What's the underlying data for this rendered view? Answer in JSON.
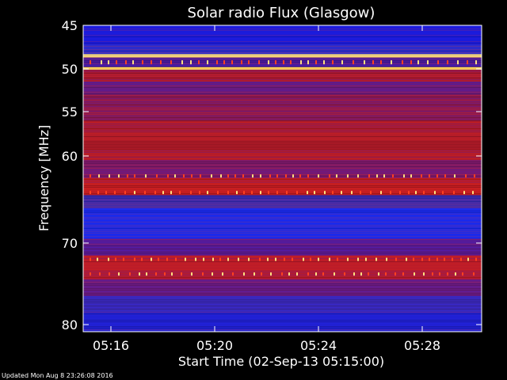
{
  "chart_data": {
    "type": "heatmap",
    "title": "Solar radio Flux (Glasgow)",
    "xlabel": "Start Time (02-Sep-13 05:15:00)",
    "ylabel": "Frequency [MHz]",
    "footer": "Updated Mon Aug  8 23:26:08 2016",
    "x_range_minutes": [
      0,
      15
    ],
    "x_ticks": [
      {
        "label": "05:16",
        "minute": 1
      },
      {
        "label": "05:20",
        "minute": 5
      },
      {
        "label": "05:24",
        "minute": 9
      },
      {
        "label": "05:28",
        "minute": 13
      }
    ],
    "y_range_mhz": [
      45,
      80
    ],
    "y_ticks": [
      {
        "label": "45",
        "mhz": 45
      },
      {
        "label": "50",
        "mhz": 50
      },
      {
        "label": "55",
        "mhz": 55
      },
      {
        "label": "60",
        "mhz": 60
      },
      {
        "label": "70",
        "mhz": 70
      },
      {
        "label": "80",
        "mhz": 80
      }
    ],
    "bands": [
      {
        "from": 45.0,
        "to": 47.2,
        "color": "#1a1ad8"
      },
      {
        "from": 47.2,
        "to": 48.3,
        "color": "#2c2cc8"
      },
      {
        "from": 48.3,
        "to": 48.7,
        "color": "#ffe070"
      },
      {
        "from": 48.7,
        "to": 49.8,
        "color": "#4a1a9a"
      },
      {
        "from": 49.8,
        "to": 50.1,
        "color": "#ffd860"
      },
      {
        "from": 50.1,
        "to": 51.5,
        "color": "#a81830"
      },
      {
        "from": 51.5,
        "to": 53.0,
        "color": "#6a1a7a"
      },
      {
        "from": 53.0,
        "to": 56.0,
        "color": "#8a1850"
      },
      {
        "from": 56.0,
        "to": 60.5,
        "color": "#b01a28"
      },
      {
        "from": 60.5,
        "to": 62.5,
        "color": "#7a1868"
      },
      {
        "from": 62.5,
        "to": 64.5,
        "color": "#c01c20"
      },
      {
        "from": 64.5,
        "to": 66.0,
        "color": "#3a2ab0"
      },
      {
        "from": 66.0,
        "to": 69.5,
        "color": "#1a2ae8"
      },
      {
        "from": 69.5,
        "to": 71.5,
        "color": "#5a1a90"
      },
      {
        "from": 71.5,
        "to": 74.5,
        "color": "#b81a28"
      },
      {
        "from": 74.5,
        "to": 76.5,
        "color": "#6a1a80"
      },
      {
        "from": 76.5,
        "to": 78.5,
        "color": "#3a28b8"
      },
      {
        "from": 78.5,
        "to": 80.0,
        "color": "#2020d0"
      }
    ],
    "burst_rows_mhz": [
      49.2,
      62.3,
      64.2,
      72.0,
      73.8
    ],
    "colorscale": [
      "#0000ff",
      "#7a1a8a",
      "#d01818",
      "#ffd060",
      "#ffffff"
    ]
  }
}
